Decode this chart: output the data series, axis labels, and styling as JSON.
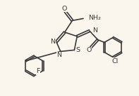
{
  "bg_color": "#faf6ee",
  "line_color": "#3a3a3a",
  "line_width": 1.2,
  "font_size": 6.8,
  "figsize": [
    1.97,
    1.37
  ],
  "dpi": 100,
  "xlim": [
    0,
    10
  ],
  "ylim": [
    0,
    7
  ]
}
